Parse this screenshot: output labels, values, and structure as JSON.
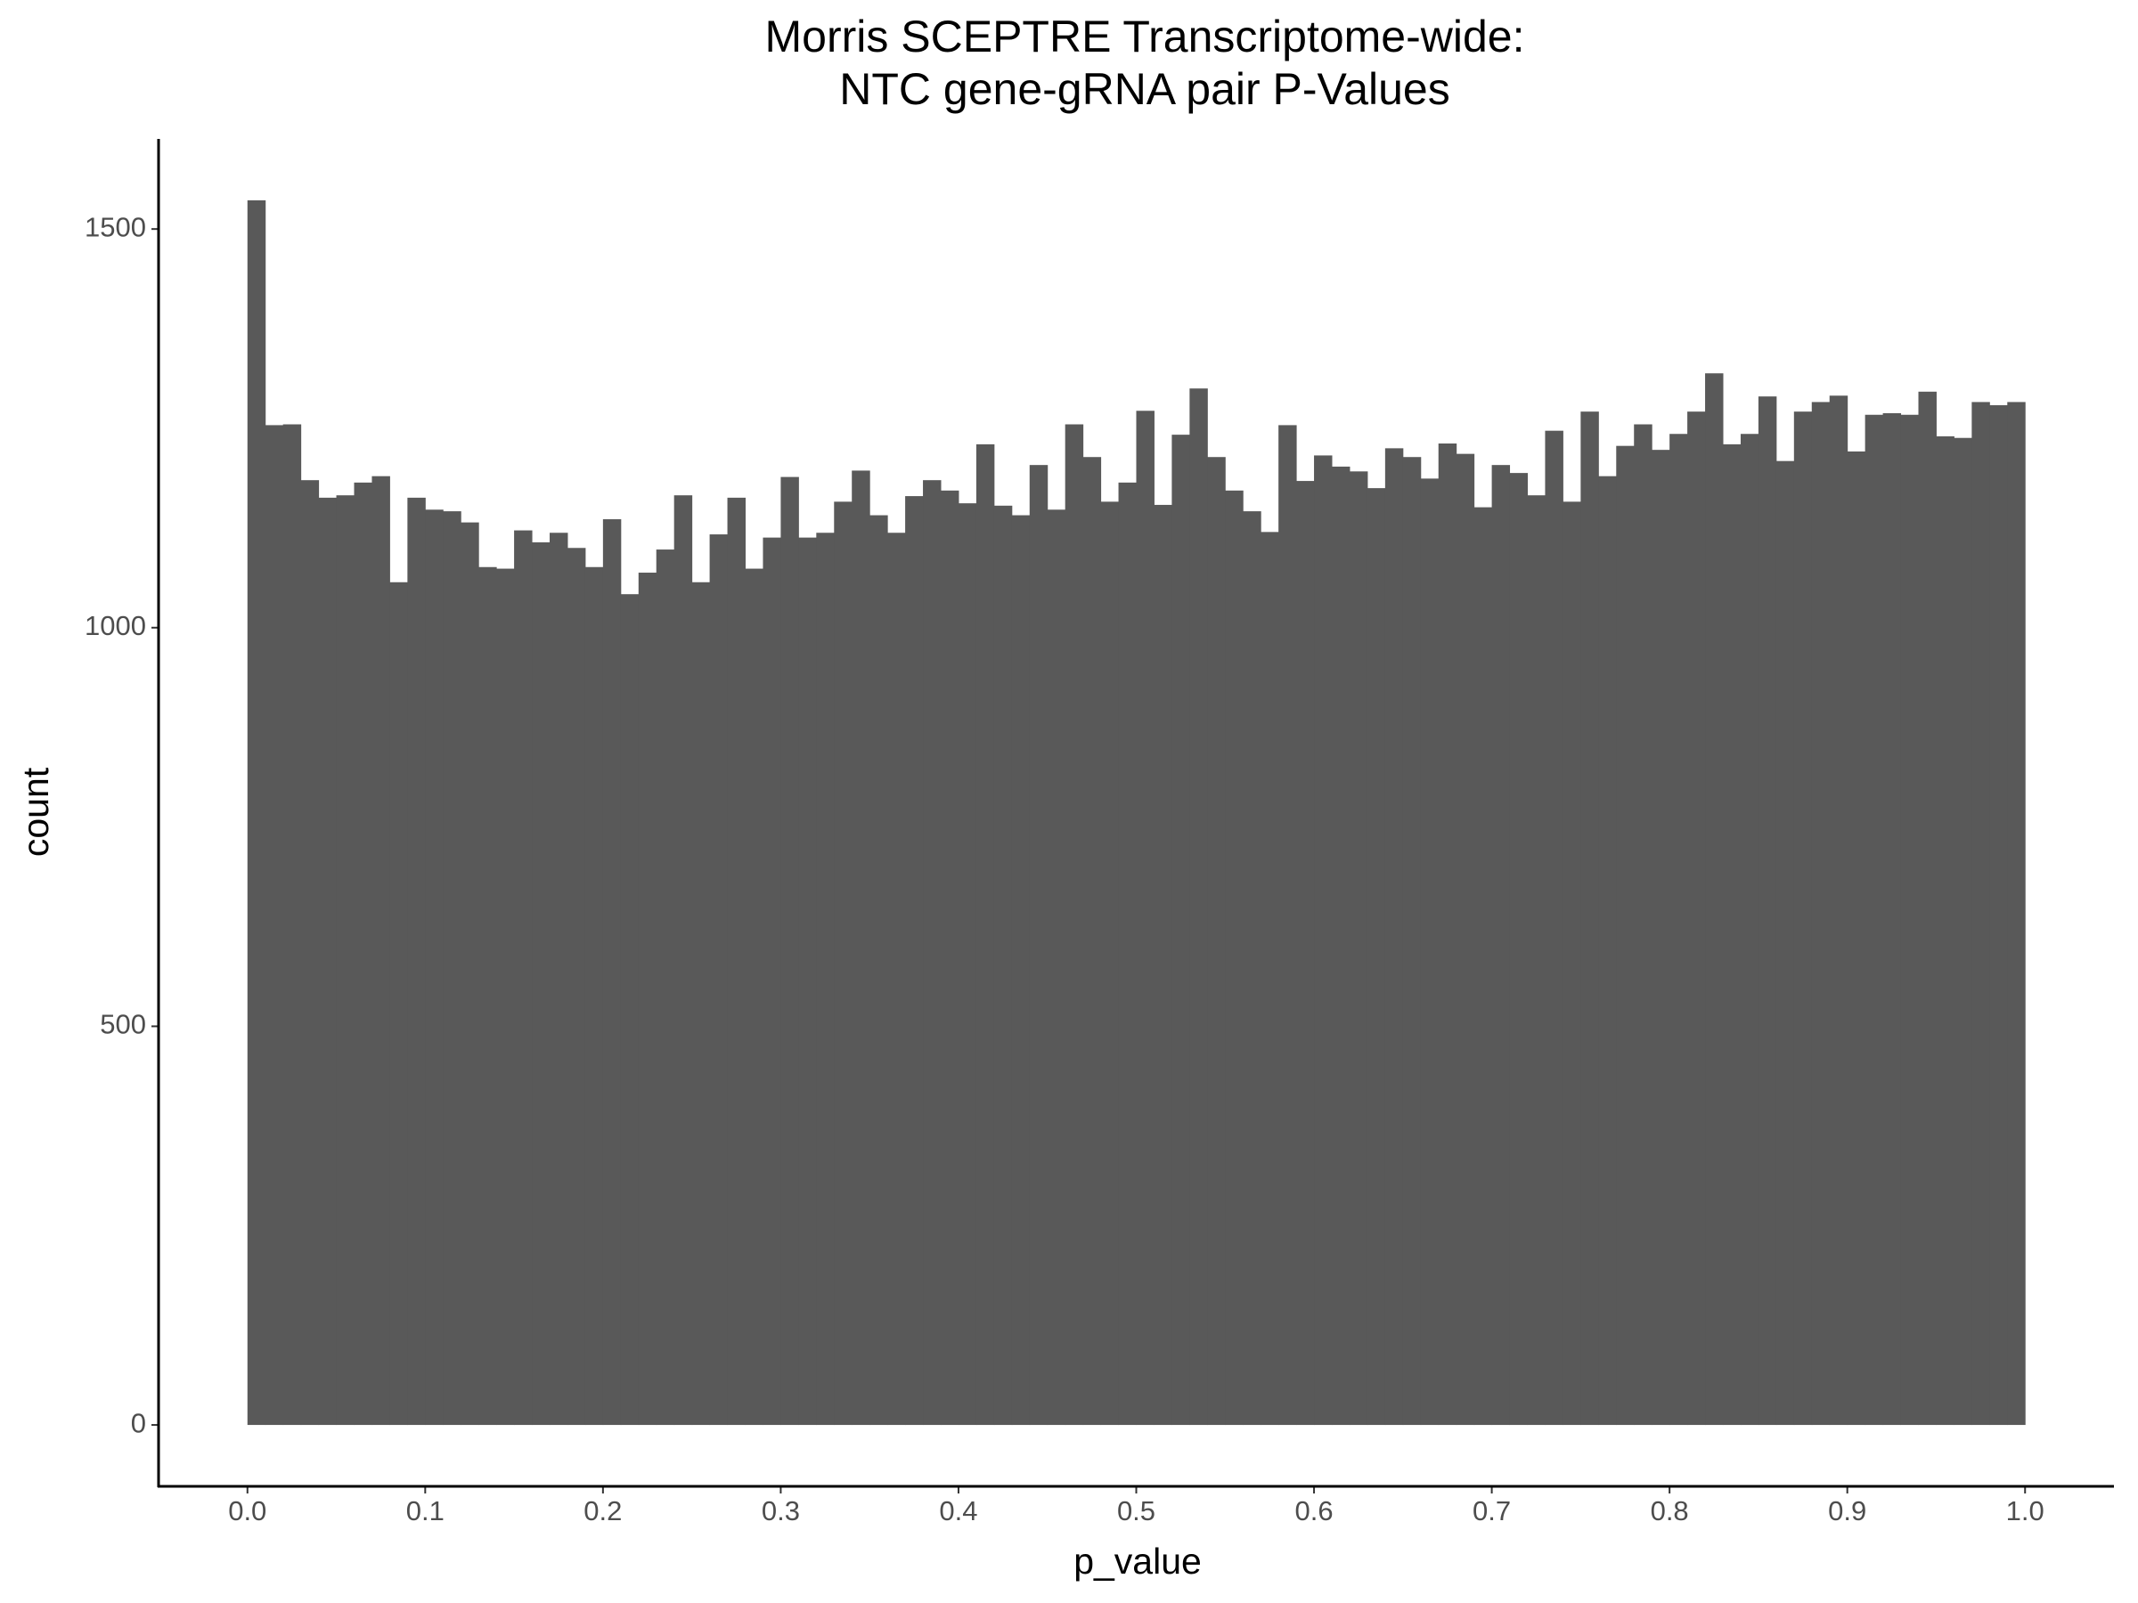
{
  "chart_data": {
    "type": "histogram",
    "title": [
      "Morris SCEPTRE Transcriptome-wide:",
      "NTC gene-gRNA pair P-Values"
    ],
    "x_label": "p_value",
    "y_label": "count",
    "color": "#595959",
    "grid": false,
    "bins": [
      0,
      0.01,
      0.02,
      0.03,
      0.04,
      0.05,
      0.06,
      0.07,
      0.08,
      0.09,
      0.1,
      0.11,
      0.12,
      0.13,
      0.14,
      0.15,
      0.16,
      0.17,
      0.18,
      0.19,
      0.2,
      0.21,
      0.22,
      0.23,
      0.24,
      0.25,
      0.26,
      0.27,
      0.28,
      0.29,
      0.3,
      0.31,
      0.32,
      0.33,
      0.34,
      0.35,
      0.36,
      0.37,
      0.38,
      0.39,
      0.4,
      0.41,
      0.42,
      0.43,
      0.44,
      0.45,
      0.46,
      0.47,
      0.48,
      0.49,
      0.5,
      0.51,
      0.52,
      0.53,
      0.54,
      0.55,
      0.56,
      0.57,
      0.58,
      0.59,
      0.6,
      0.61,
      0.62,
      0.63,
      0.64,
      0.65,
      0.66,
      0.67,
      0.68,
      0.69,
      0.7,
      0.71,
      0.72,
      0.73,
      0.74,
      0.75,
      0.76,
      0.77,
      0.78,
      0.79,
      0.8,
      0.81,
      0.82,
      0.83,
      0.84,
      0.85,
      0.86,
      0.87,
      0.88,
      0.89,
      0.9,
      0.91,
      0.92,
      0.93,
      0.94,
      0.95,
      0.96,
      0.97,
      0.98,
      0.99,
      1
    ],
    "counts": [
      1536,
      1254,
      1255,
      1185,
      1163,
      1166,
      1182,
      1190,
      1057,
      1163,
      1148,
      1146,
      1132,
      1076,
      1074,
      1122,
      1107,
      1119,
      1100,
      1076,
      1136,
      1042,
      1069,
      1098,
      1166,
      1057,
      1117,
      1163,
      1074,
      1113,
      1189,
      1113,
      1119,
      1158,
      1197,
      1141,
      1119,
      1165,
      1185,
      1172,
      1156,
      1230,
      1153,
      1141,
      1204,
      1148,
      1255,
      1214,
      1158,
      1182,
      1272,
      1154,
      1242,
      1300,
      1214,
      1172,
      1146,
      1120,
      1254,
      1184,
      1216,
      1202,
      1196,
      1175,
      1225,
      1214,
      1187,
      1231,
      1218,
      1151,
      1204,
      1194,
      1166,
      1247,
      1158,
      1271,
      1190,
      1228,
      1255,
      1223,
      1243,
      1271,
      1319,
      1230,
      1243,
      1290,
      1209,
      1271,
      1283,
      1291,
      1221,
      1267,
      1269,
      1267,
      1296,
      1240,
      1238,
      1283,
      1279,
      1283
    ],
    "xlim": [
      -0.05,
      1.05
    ],
    "xticks": [
      {
        "value": 0,
        "label": "0.0"
      },
      0.1,
      0.2,
      0.3,
      0.4,
      0.5,
      0.6,
      0.7,
      0.8,
      0.9,
      {
        "value": 1,
        "label": "1.0"
      }
    ],
    "ylim": [
      -77,
      1613
    ],
    "yticks": [
      0,
      500,
      1000,
      1500
    ]
  }
}
